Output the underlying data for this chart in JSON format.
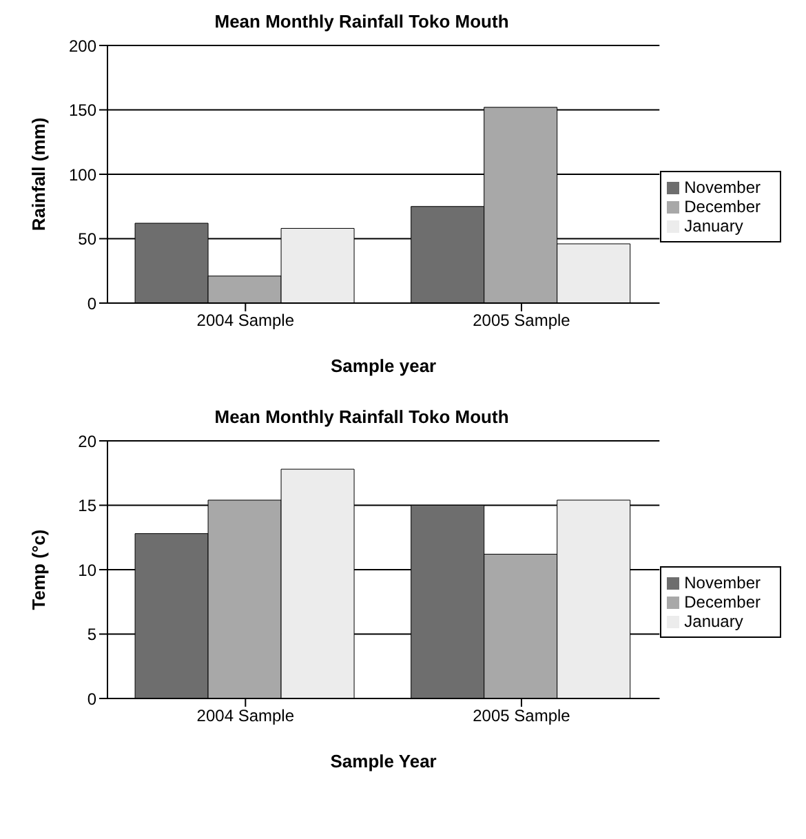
{
  "chart_data": [
    {
      "type": "bar",
      "title": "Mean Monthly Rainfall Toko Mouth",
      "xlabel": "Sample year",
      "ylabel": "Rainfall (mm)",
      "categories": [
        "2004 Sample",
        "2005 Sample"
      ],
      "series": [
        {
          "name": "November",
          "color": "#6e6e6e",
          "values": [
            62,
            75
          ]
        },
        {
          "name": "December",
          "color": "#a8a8a8",
          "values": [
            21,
            152
          ]
        },
        {
          "name": "January",
          "color": "#ececec",
          "values": [
            58,
            46
          ]
        }
      ],
      "ylim": [
        0,
        200
      ],
      "yticks": [
        0,
        50,
        100,
        150,
        200
      ],
      "grid": "y",
      "legend": "right"
    },
    {
      "type": "bar",
      "title": "Mean Monthly Rainfall Toko Mouth",
      "xlabel": "Sample Year",
      "ylabel": "Temp (°c)",
      "categories": [
        "2004 Sample",
        "2005 Sample"
      ],
      "series": [
        {
          "name": "November",
          "color": "#6e6e6e",
          "values": [
            12.8,
            15
          ]
        },
        {
          "name": "December",
          "color": "#a8a8a8",
          "values": [
            15.4,
            11.2
          ]
        },
        {
          "name": "January",
          "color": "#ececec",
          "values": [
            17.8,
            15.4
          ]
        }
      ],
      "ylim": [
        0,
        20
      ],
      "yticks": [
        0,
        5,
        10,
        15,
        20
      ],
      "grid": "y",
      "legend": "right"
    }
  ]
}
